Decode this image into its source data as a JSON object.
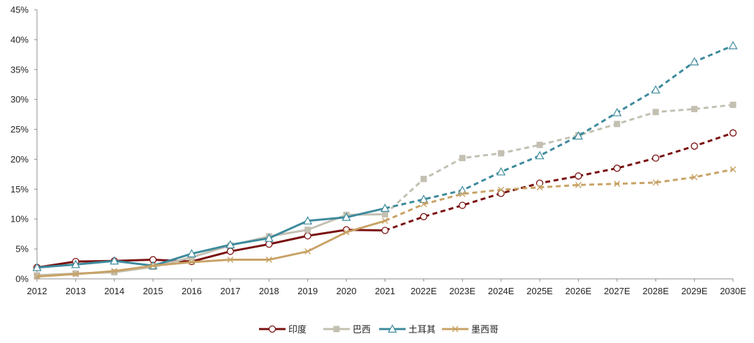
{
  "chart_data": {
    "type": "line",
    "title": "",
    "xlabel": "",
    "ylabel": "",
    "x": [
      "2012",
      "2013",
      "2014",
      "2015",
      "2016",
      "2017",
      "2018",
      "2019",
      "2020",
      "2021",
      "2022E",
      "2023E",
      "2024E",
      "2025E",
      "2026E",
      "2027E",
      "2028E",
      "2029E",
      "2030E"
    ],
    "y_tick_labels": [
      "0%",
      "5%",
      "10%",
      "15%",
      "20%",
      "25%",
      "30%",
      "35%",
      "40%",
      "45%"
    ],
    "ylim": [
      0,
      45
    ],
    "y_unit": "%",
    "grid": false,
    "legend_position": "bottom",
    "actual_last_index": 9,
    "series": [
      {
        "name": "印度",
        "color": "#7a0f0f",
        "marker": "circle",
        "values": [
          1.9,
          2.9,
          3.0,
          3.2,
          2.9,
          4.6,
          5.8,
          7.2,
          8.2,
          8.1,
          10.4,
          12.3,
          14.3,
          16.0,
          17.2,
          18.5,
          20.2,
          22.2,
          24.4
        ]
      },
      {
        "name": "巴西",
        "color": "#c3c0b2",
        "marker": "square",
        "values": [
          0.6,
          0.9,
          1.1,
          2.0,
          3.6,
          5.6,
          7.1,
          8.2,
          10.7,
          10.8,
          16.7,
          20.2,
          21.0,
          22.4,
          24.0,
          25.9,
          27.9,
          28.4,
          29.1
        ]
      },
      {
        "name": "土耳其",
        "color": "#3d8a9c",
        "marker": "triangle",
        "values": [
          1.9,
          2.4,
          3.0,
          2.2,
          4.2,
          5.7,
          6.8,
          9.7,
          10.3,
          11.8,
          13.3,
          14.8,
          17.9,
          20.6,
          23.9,
          27.8,
          31.6,
          36.3,
          39.0
        ]
      },
      {
        "name": "墨西哥",
        "color": "#c8a266",
        "marker": "x",
        "values": [
          0.4,
          0.8,
          1.3,
          2.2,
          2.8,
          3.2,
          3.2,
          4.6,
          7.8,
          9.7,
          12.5,
          14.2,
          14.9,
          15.3,
          15.7,
          15.9,
          16.1,
          17.0,
          18.3
        ]
      }
    ]
  }
}
